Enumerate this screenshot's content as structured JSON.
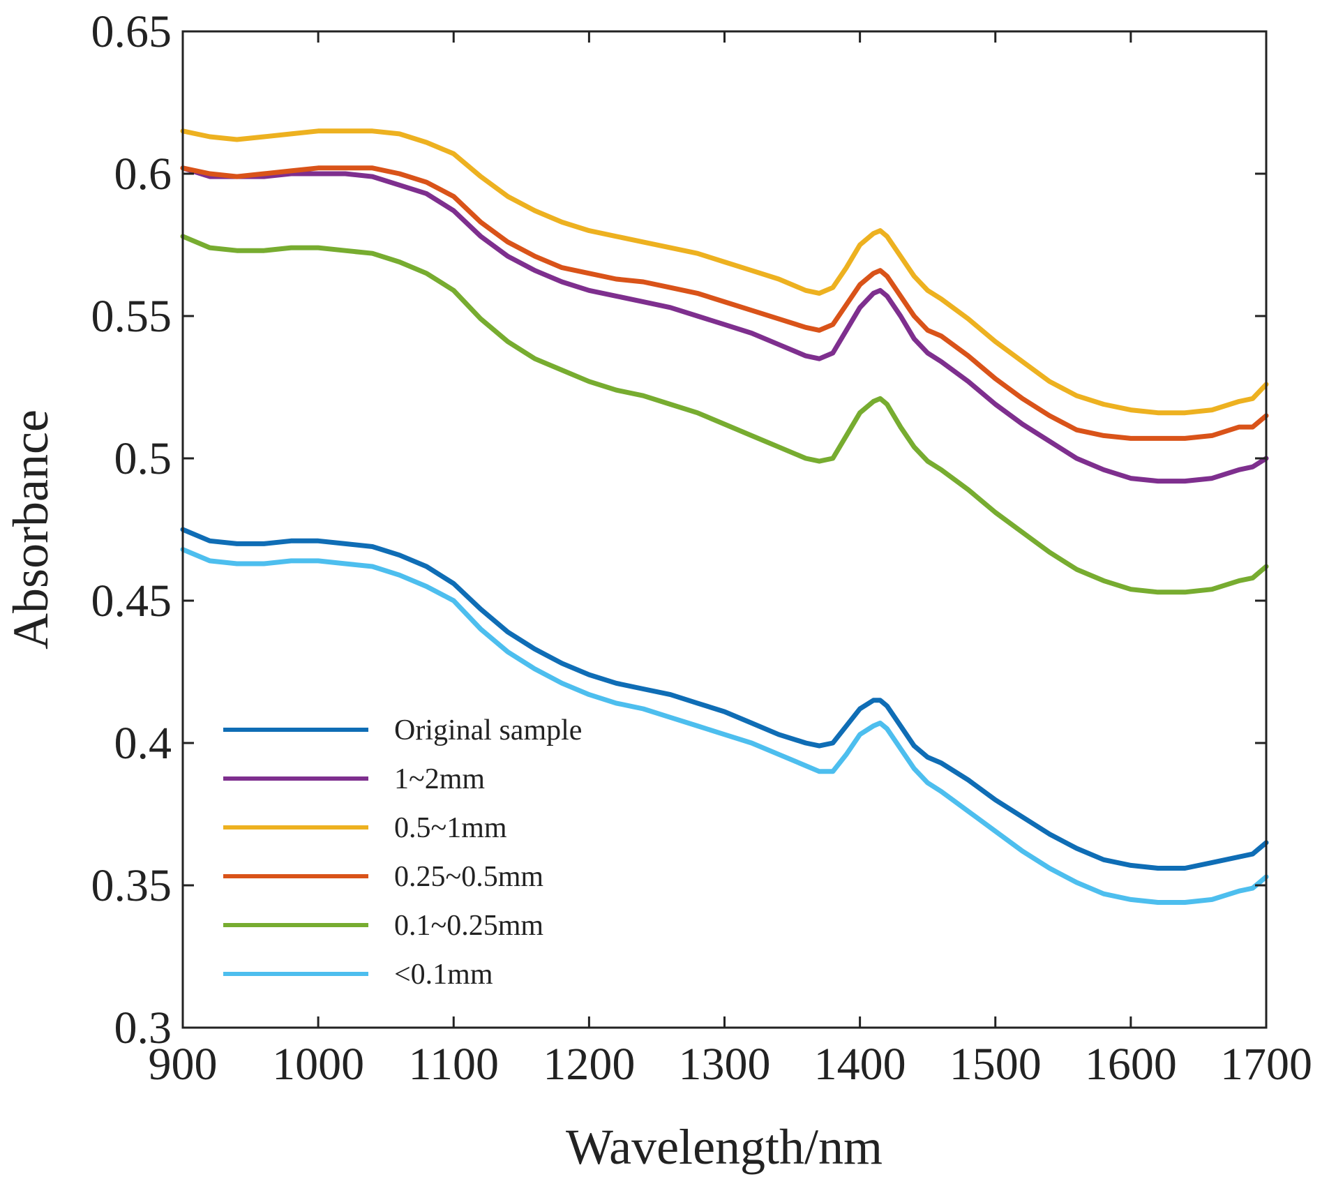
{
  "chart_data": {
    "type": "line",
    "title": "",
    "xlabel": "Wavelength/nm",
    "ylabel": "Absorbance",
    "xlim": [
      900,
      1700
    ],
    "ylim": [
      0.3,
      0.65
    ],
    "x_ticks": [
      "900",
      "1000",
      "1100",
      "1200",
      "1300",
      "1400",
      "1500",
      "1600",
      "1700"
    ],
    "y_ticks": [
      "0.3",
      "0.35",
      "0.4",
      "0.45",
      "0.5",
      "0.55",
      "0.6",
      "0.65"
    ],
    "legend_position": "bottom-left",
    "grid": false,
    "x": [
      900,
      920,
      940,
      960,
      980,
      1000,
      1020,
      1040,
      1060,
      1080,
      1100,
      1120,
      1140,
      1160,
      1180,
      1200,
      1220,
      1240,
      1260,
      1280,
      1300,
      1320,
      1340,
      1360,
      1370,
      1380,
      1390,
      1400,
      1410,
      1415,
      1420,
      1430,
      1440,
      1450,
      1460,
      1480,
      1500,
      1520,
      1540,
      1560,
      1580,
      1600,
      1620,
      1640,
      1660,
      1680,
      1690,
      1700
    ],
    "series": [
      {
        "name": "Original sample",
        "color": "#0f6db5",
        "values": [
          0.475,
          0.471,
          0.47,
          0.47,
          0.471,
          0.471,
          0.47,
          0.469,
          0.466,
          0.462,
          0.456,
          0.447,
          0.439,
          0.433,
          0.428,
          0.424,
          0.421,
          0.419,
          0.417,
          0.414,
          0.411,
          0.407,
          0.403,
          0.4,
          0.399,
          0.4,
          0.406,
          0.412,
          0.415,
          0.415,
          0.413,
          0.406,
          0.399,
          0.395,
          0.393,
          0.387,
          0.38,
          0.374,
          0.368,
          0.363,
          0.359,
          0.357,
          0.356,
          0.356,
          0.358,
          0.36,
          0.361,
          0.365
        ]
      },
      {
        "name": "1~2mm",
        "color": "#7e2f8e",
        "values": [
          0.602,
          0.599,
          0.599,
          0.599,
          0.6,
          0.6,
          0.6,
          0.599,
          0.596,
          0.593,
          0.587,
          0.578,
          0.571,
          0.566,
          0.562,
          0.559,
          0.557,
          0.555,
          0.553,
          0.55,
          0.547,
          0.544,
          0.54,
          0.536,
          0.535,
          0.537,
          0.545,
          0.553,
          0.558,
          0.559,
          0.557,
          0.55,
          0.542,
          0.537,
          0.534,
          0.527,
          0.519,
          0.512,
          0.506,
          0.5,
          0.496,
          0.493,
          0.492,
          0.492,
          0.493,
          0.496,
          0.497,
          0.5
        ]
      },
      {
        "name": "0.5~1mm",
        "color": "#edb120",
        "values": [
          0.615,
          0.613,
          0.612,
          0.613,
          0.614,
          0.615,
          0.615,
          0.615,
          0.614,
          0.611,
          0.607,
          0.599,
          0.592,
          0.587,
          0.583,
          0.58,
          0.578,
          0.576,
          0.574,
          0.572,
          0.569,
          0.566,
          0.563,
          0.559,
          0.558,
          0.56,
          0.567,
          0.575,
          0.579,
          0.58,
          0.578,
          0.571,
          0.564,
          0.559,
          0.556,
          0.549,
          0.541,
          0.534,
          0.527,
          0.522,
          0.519,
          0.517,
          0.516,
          0.516,
          0.517,
          0.52,
          0.521,
          0.526
        ]
      },
      {
        "name": "0.25~0.5mm",
        "color": "#d95319",
        "values": [
          0.602,
          0.6,
          0.599,
          0.6,
          0.601,
          0.602,
          0.602,
          0.602,
          0.6,
          0.597,
          0.592,
          0.583,
          0.576,
          0.571,
          0.567,
          0.565,
          0.563,
          0.562,
          0.56,
          0.558,
          0.555,
          0.552,
          0.549,
          0.546,
          0.545,
          0.547,
          0.554,
          0.561,
          0.565,
          0.566,
          0.564,
          0.557,
          0.55,
          0.545,
          0.543,
          0.536,
          0.528,
          0.521,
          0.515,
          0.51,
          0.508,
          0.507,
          0.507,
          0.507,
          0.508,
          0.511,
          0.511,
          0.515
        ]
      },
      {
        "name": "0.1~0.25mm",
        "color": "#77ac30",
        "values": [
          0.578,
          0.574,
          0.573,
          0.573,
          0.574,
          0.574,
          0.573,
          0.572,
          0.569,
          0.565,
          0.559,
          0.549,
          0.541,
          0.535,
          0.531,
          0.527,
          0.524,
          0.522,
          0.519,
          0.516,
          0.512,
          0.508,
          0.504,
          0.5,
          0.499,
          0.5,
          0.508,
          0.516,
          0.52,
          0.521,
          0.519,
          0.511,
          0.504,
          0.499,
          0.496,
          0.489,
          0.481,
          0.474,
          0.467,
          0.461,
          0.457,
          0.454,
          0.453,
          0.453,
          0.454,
          0.457,
          0.458,
          0.462
        ]
      },
      {
        "name": "<0.1mm",
        "color": "#4dbeee",
        "values": [
          0.468,
          0.464,
          0.463,
          0.463,
          0.464,
          0.464,
          0.463,
          0.462,
          0.459,
          0.455,
          0.45,
          0.44,
          0.432,
          0.426,
          0.421,
          0.417,
          0.414,
          0.412,
          0.409,
          0.406,
          0.403,
          0.4,
          0.396,
          0.392,
          0.39,
          0.39,
          0.396,
          0.403,
          0.406,
          0.407,
          0.405,
          0.398,
          0.391,
          0.386,
          0.383,
          0.376,
          0.369,
          0.362,
          0.356,
          0.351,
          0.347,
          0.345,
          0.344,
          0.344,
          0.345,
          0.348,
          0.349,
          0.353
        ]
      }
    ]
  }
}
